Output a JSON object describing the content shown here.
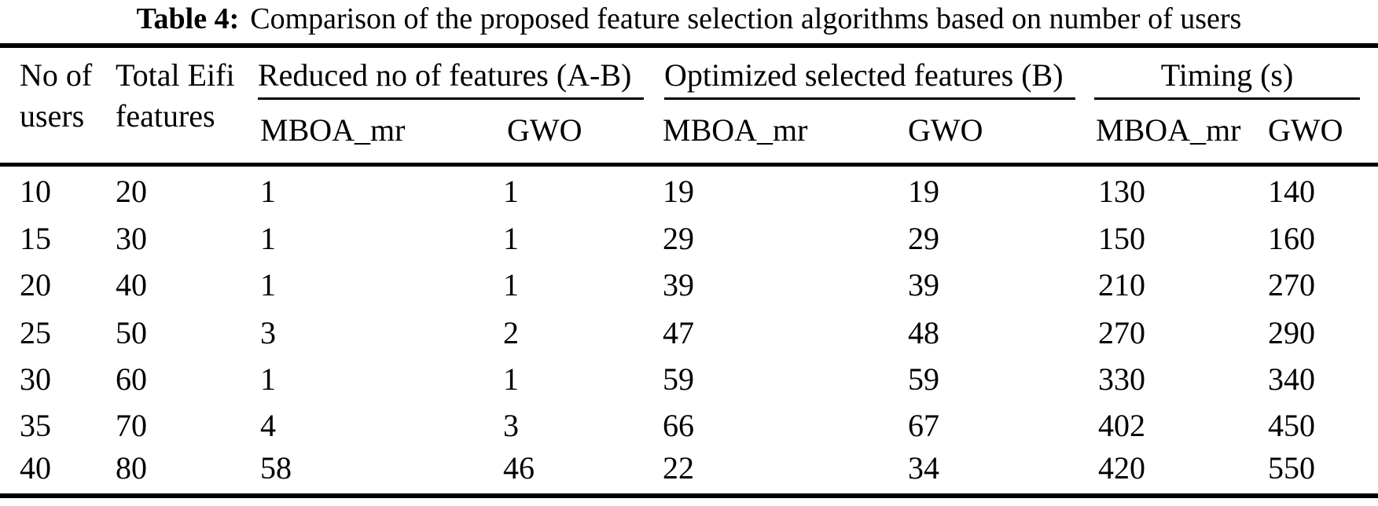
{
  "title": {
    "label": "Table 4:",
    "text": "Comparison of the proposed feature selection algorithms based on number of users"
  },
  "colors": {
    "text": "#000000",
    "background": "#ffffff",
    "rule": "#000000"
  },
  "headers": {
    "col1": {
      "line1": "No of",
      "line2": "users"
    },
    "col2": {
      "line1": "Total Eifi",
      "line2": "features"
    },
    "groups": [
      {
        "label": "Reduced no of features (A-B)",
        "sub": [
          "MBOA_mr",
          "GWO"
        ]
      },
      {
        "label": "Optimized selected features (B)",
        "sub": [
          "MBOA_mr",
          "GWO"
        ]
      },
      {
        "label": "Timing (s)",
        "sub": [
          "MBOA_mr",
          "GWO"
        ]
      }
    ]
  },
  "rows": [
    [
      "10",
      "20",
      "1",
      "1",
      "19",
      "19",
      "130",
      "140"
    ],
    [
      "15",
      "30",
      "1",
      "1",
      "29",
      "29",
      "150",
      "160"
    ],
    [
      "20",
      "40",
      "1",
      "1",
      "39",
      "39",
      "210",
      "270"
    ],
    [
      "25",
      "50",
      "3",
      "2",
      "47",
      "48",
      "270",
      "290"
    ],
    [
      "30",
      "60",
      "1",
      "1",
      "59",
      "59",
      "330",
      "340"
    ],
    [
      "35",
      "70",
      "4",
      "3",
      "66",
      "67",
      "402",
      "450"
    ],
    [
      "40",
      "80",
      "58",
      "46",
      "22",
      "34",
      "420",
      "550"
    ]
  ],
  "chart_data": {
    "type": "table",
    "title": "Table 4: Comparison of the proposed feature selection algorithms based on number of users",
    "columns": [
      "No of users",
      "Total Eifi features",
      "Reduced no of features (A-B) - MBOA_mr",
      "Reduced no of features (A-B) - GWO",
      "Optimized selected features (B) - MBOA_mr",
      "Optimized selected features (B) - GWO",
      "Timing (s) - MBOA_mr",
      "Timing (s) - GWO"
    ],
    "rows": [
      [
        10,
        20,
        1,
        1,
        19,
        19,
        130,
        140
      ],
      [
        15,
        30,
        1,
        1,
        29,
        29,
        150,
        160
      ],
      [
        20,
        40,
        1,
        1,
        39,
        39,
        210,
        270
      ],
      [
        25,
        50,
        3,
        2,
        47,
        48,
        270,
        290
      ],
      [
        30,
        60,
        1,
        1,
        59,
        59,
        330,
        340
      ],
      [
        35,
        70,
        4,
        3,
        66,
        67,
        402,
        450
      ],
      [
        40,
        80,
        58,
        46,
        22,
        34,
        420,
        550
      ]
    ]
  }
}
